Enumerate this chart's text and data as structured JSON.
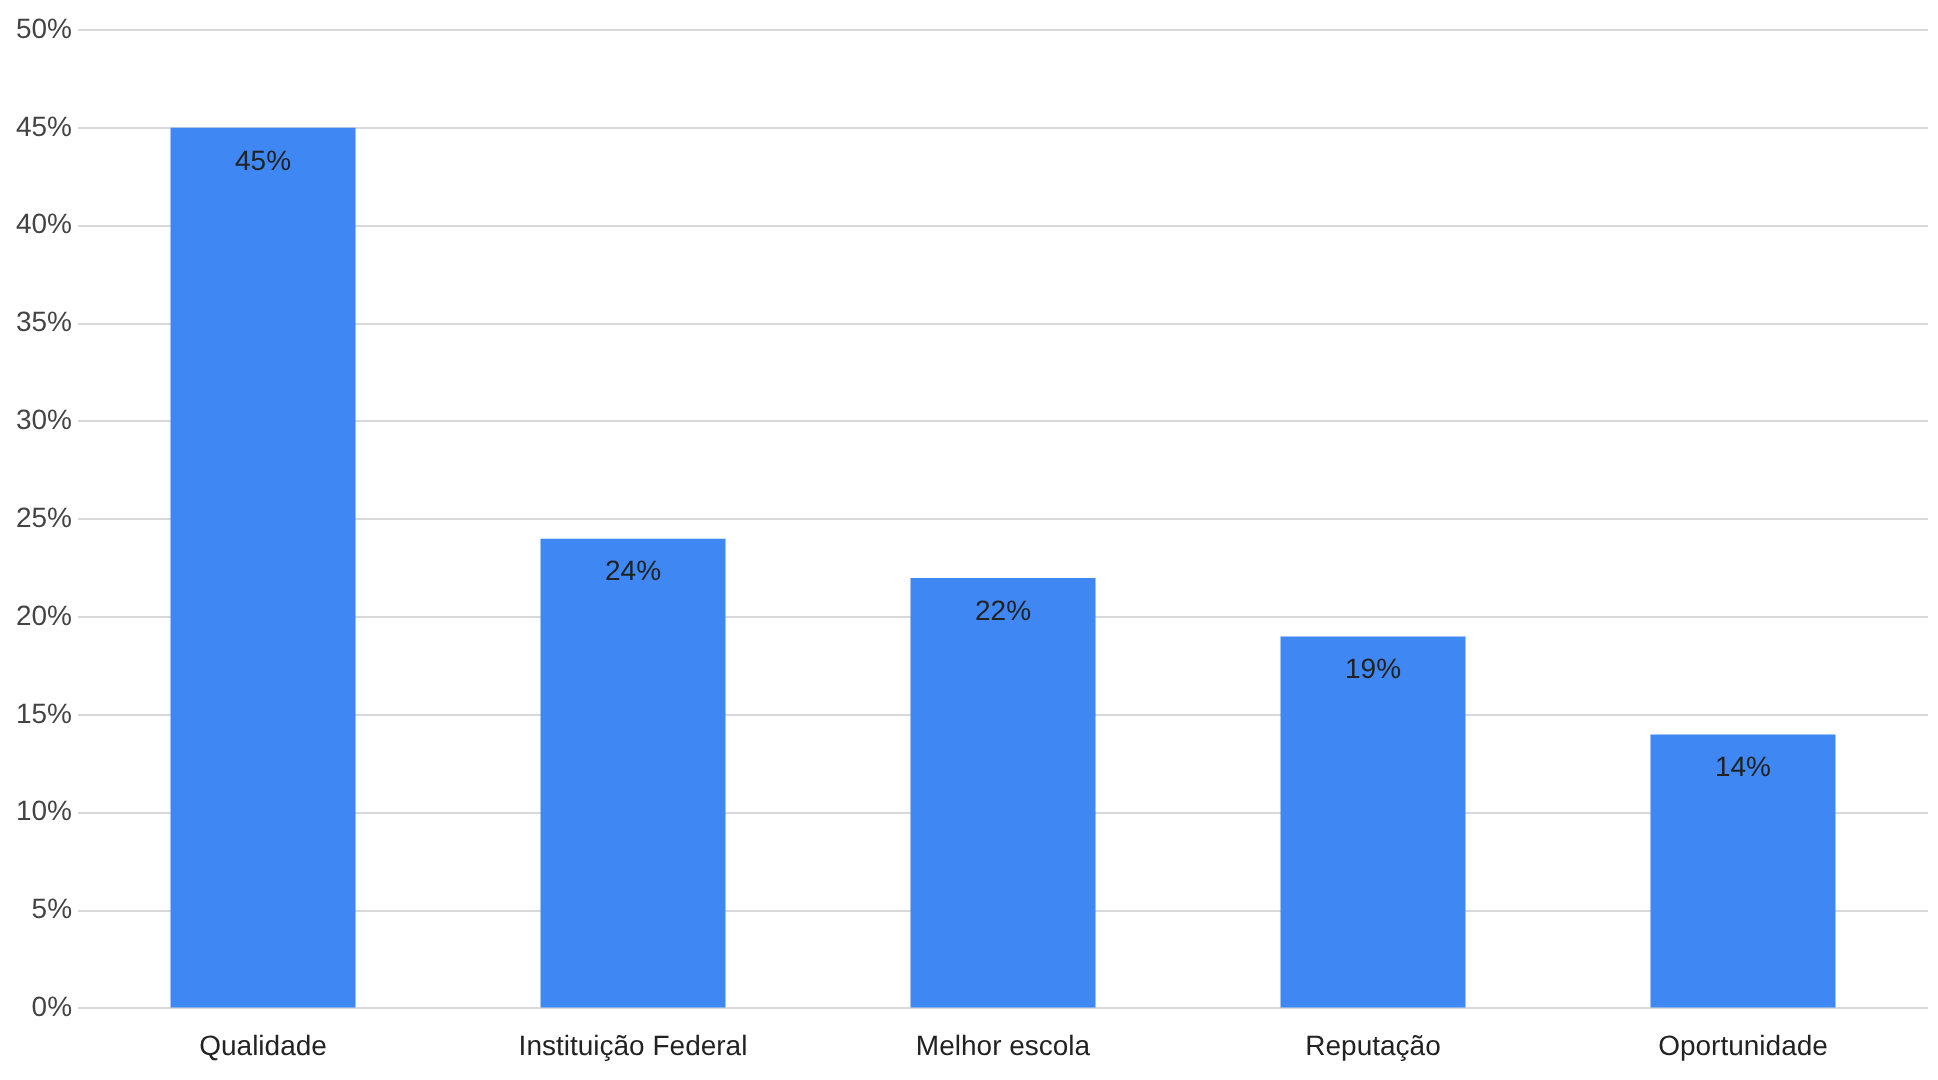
{
  "chart_data": {
    "type": "bar",
    "categories": [
      "Qualidade",
      "Instituição Federal",
      "Melhor escola",
      "Reputação",
      "Oportunidade"
    ],
    "values": [
      45,
      24,
      22,
      19,
      14
    ],
    "color": "#3f87f2",
    "value_labels": [
      "45%",
      "24%",
      "22%",
      "19%",
      "14%"
    ],
    "ylim": [
      0,
      50
    ],
    "yticks": [
      {
        "value": 0,
        "label": "0%"
      },
      {
        "value": 5,
        "label": "5%"
      },
      {
        "value": 10,
        "label": "10%"
      },
      {
        "value": 15,
        "label": "15%"
      },
      {
        "value": 20,
        "label": "20%"
      },
      {
        "value": 25,
        "label": "25%"
      },
      {
        "value": 30,
        "label": "30%"
      },
      {
        "value": 35,
        "label": "35%"
      },
      {
        "value": 40,
        "label": "40%"
      },
      {
        "value": 45,
        "label": "45%"
      },
      {
        "value": 50,
        "label": "50%"
      }
    ],
    "grid": "y",
    "legend": false
  }
}
